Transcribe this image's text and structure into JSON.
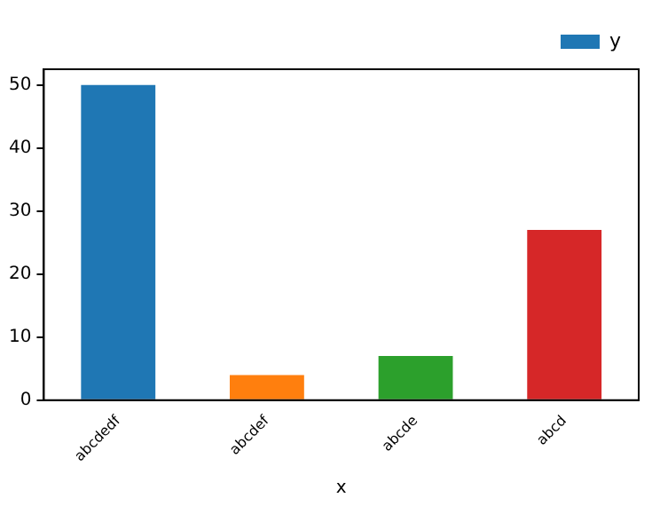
{
  "chart_data": {
    "type": "bar",
    "xlabel": "x",
    "categories": [
      "abcdedf",
      "abcdef",
      "abcde",
      "abcd"
    ],
    "series": [
      {
        "name": "y",
        "color": "#1f77b4",
        "colors": [
          "#1f77b4",
          "#ff7f0e",
          "#2ca02c",
          "#d62728"
        ],
        "values": [
          50,
          4,
          7,
          27
        ]
      }
    ],
    "ylim": [
      0,
      52.5
    ],
    "yticks": [
      0,
      10,
      20,
      30,
      40,
      50
    ],
    "grid": false,
    "legend": "top right"
  }
}
